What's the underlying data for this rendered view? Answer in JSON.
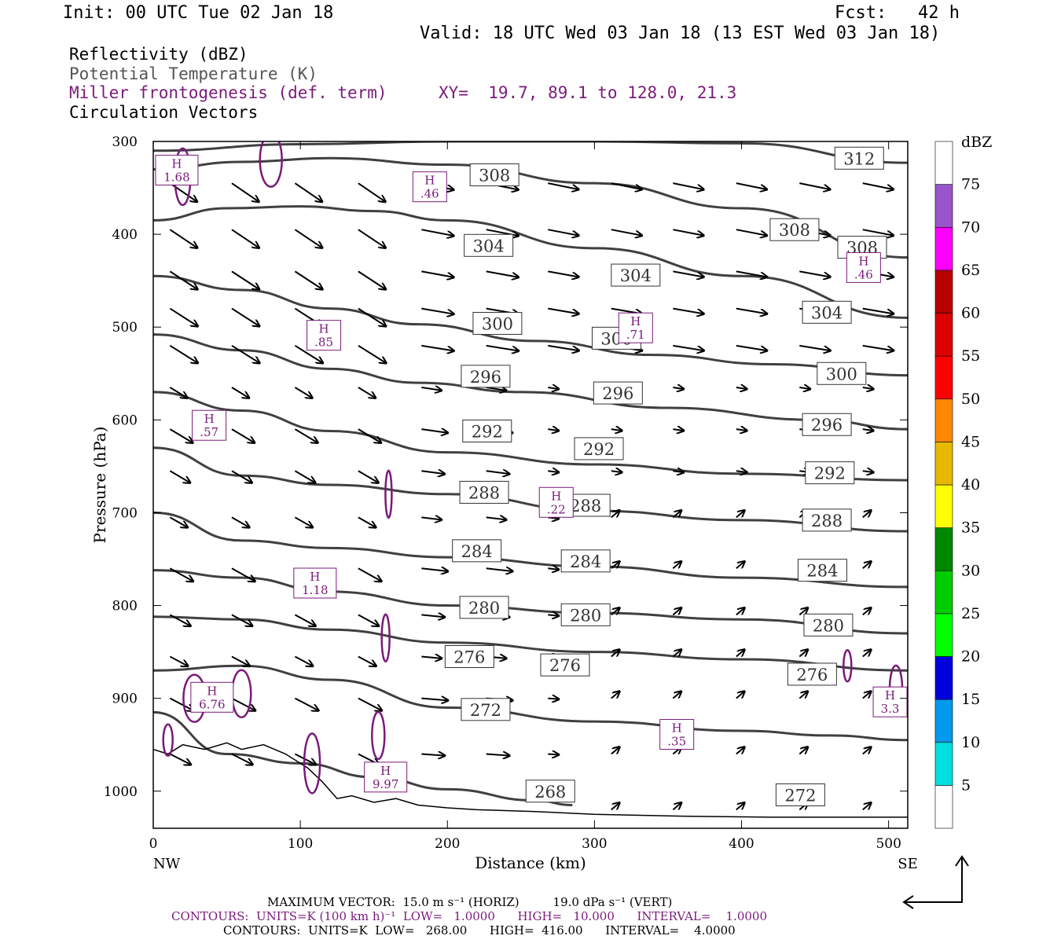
{
  "header": {
    "init": "Init: 00 UTC Tue 02 Jan 18",
    "fcst": "Fcst:   42 h",
    "valid": "Valid: 18 UTC Wed 03 Jan 18 (13 EST Wed 03 Jan 18)"
  },
  "legend": {
    "reflectivity": "Reflectivity (dBZ)",
    "theta": "Potential Temperature (K)",
    "frontogenesis": "Miller frontogenesis (def. term)",
    "xy": "XY=  19.7, 89.1 to 128.0, 21.3",
    "vectors": "Circulation Vectors"
  },
  "chart_data": {
    "type": "line",
    "title": "",
    "xlabel": "Distance (km)",
    "ylabel": "Pressure (hPa)",
    "xlim": [
      0,
      513
    ],
    "ylim": [
      1040,
      300
    ],
    "y_scale": "pressure (reversed)",
    "x_ticks": [
      "0",
      "100",
      "200",
      "300",
      "400",
      "500"
    ],
    "y_ticks": [
      "300",
      "400",
      "500",
      "600",
      "700",
      "800",
      "900",
      "1000"
    ],
    "x_end_labels": {
      "left": "NW",
      "right": "SE"
    },
    "theta_contours": [
      {
        "name": "312",
        "points": [
          [
            0,
            310
          ],
          [
            100,
            303
          ],
          [
            200,
            300
          ],
          [
            300,
            300
          ],
          [
            400,
            302
          ],
          [
            513,
            323
          ]
        ]
      },
      {
        "name": "308",
        "points": [
          [
            0,
            330
          ],
          [
            60,
            322
          ],
          [
            120,
            318
          ],
          [
            200,
            325
          ],
          [
            300,
            345
          ],
          [
            400,
            372
          ],
          [
            513,
            425
          ]
        ]
      },
      {
        "name": "304",
        "points": [
          [
            0,
            385
          ],
          [
            50,
            372
          ],
          [
            100,
            370
          ],
          [
            150,
            375
          ],
          [
            200,
            385
          ],
          [
            300,
            415
          ],
          [
            400,
            445
          ],
          [
            513,
            490
          ]
        ]
      },
      {
        "name": "300",
        "points": [
          [
            0,
            445
          ],
          [
            60,
            460
          ],
          [
            120,
            480
          ],
          [
            180,
            497
          ],
          [
            260,
            515
          ],
          [
            340,
            530
          ],
          [
            420,
            540
          ],
          [
            513,
            552
          ]
        ]
      },
      {
        "name": "296",
        "points": [
          [
            0,
            508
          ],
          [
            60,
            525
          ],
          [
            120,
            545
          ],
          [
            180,
            560
          ],
          [
            250,
            570
          ],
          [
            350,
            587
          ],
          [
            450,
            600
          ],
          [
            513,
            610
          ]
        ]
      },
      {
        "name": "292",
        "points": [
          [
            0,
            570
          ],
          [
            60,
            590
          ],
          [
            120,
            612
          ],
          [
            200,
            635
          ],
          [
            300,
            648
          ],
          [
            400,
            658
          ],
          [
            513,
            665
          ]
        ]
      },
      {
        "name": "288",
        "points": [
          [
            0,
            630
          ],
          [
            60,
            660
          ],
          [
            120,
            670
          ],
          [
            200,
            680
          ],
          [
            300,
            698
          ],
          [
            400,
            708
          ],
          [
            513,
            720
          ]
        ]
      },
      {
        "name": "284",
        "points": [
          [
            0,
            700
          ],
          [
            60,
            730
          ],
          [
            120,
            738
          ],
          [
            200,
            748
          ],
          [
            300,
            758
          ],
          [
            400,
            770
          ],
          [
            513,
            780
          ]
        ]
      },
      {
        "name": "280",
        "points": [
          [
            0,
            762
          ],
          [
            60,
            770
          ],
          [
            120,
            785
          ],
          [
            200,
            800
          ],
          [
            300,
            808
          ],
          [
            400,
            815
          ],
          [
            513,
            830
          ]
        ]
      },
      {
        "name": "276",
        "points": [
          [
            0,
            812
          ],
          [
            60,
            815
          ],
          [
            120,
            826
          ],
          [
            200,
            840
          ],
          [
            300,
            850
          ],
          [
            400,
            858
          ],
          [
            513,
            870
          ]
        ]
      },
      {
        "name": "272",
        "points": [
          [
            0,
            870
          ],
          [
            60,
            865
          ],
          [
            120,
            880
          ],
          [
            200,
            910
          ],
          [
            300,
            925
          ],
          [
            400,
            935
          ],
          [
            460,
            940
          ],
          [
            513,
            945
          ]
        ]
      },
      {
        "name": "268",
        "points": [
          [
            0,
            915
          ],
          [
            50,
            960
          ],
          [
            100,
            970
          ],
          [
            150,
            985
          ],
          [
            200,
            998
          ],
          [
            260,
            1010
          ],
          [
            285,
            1015
          ]
        ]
      }
    ],
    "theta_labels": [
      {
        "text": "312",
        "x": 480,
        "y": 318
      },
      {
        "text": "308",
        "x": 232,
        "y": 336
      },
      {
        "text": "308",
        "x": 436,
        "y": 395
      },
      {
        "text": "308",
        "x": 482,
        "y": 414
      },
      {
        "text": "304",
        "x": 228,
        "y": 412
      },
      {
        "text": "304",
        "x": 328,
        "y": 444
      },
      {
        "text": "304",
        "x": 458,
        "y": 484
      },
      {
        "text": "300",
        "x": 234,
        "y": 496
      },
      {
        "text": "300",
        "x": 315,
        "y": 512
      },
      {
        "text": "300",
        "x": 468,
        "y": 550
      },
      {
        "text": "296",
        "x": 226,
        "y": 553
      },
      {
        "text": "296",
        "x": 316,
        "y": 571
      },
      {
        "text": "296",
        "x": 458,
        "y": 605
      },
      {
        "text": "292",
        "x": 227,
        "y": 612
      },
      {
        "text": "292",
        "x": 303,
        "y": 631
      },
      {
        "text": "292",
        "x": 460,
        "y": 657
      },
      {
        "text": "288",
        "x": 225,
        "y": 678
      },
      {
        "text": "288",
        "x": 294,
        "y": 692
      },
      {
        "text": "288",
        "x": 458,
        "y": 708
      },
      {
        "text": "284",
        "x": 220,
        "y": 741
      },
      {
        "text": "284",
        "x": 294,
        "y": 752
      },
      {
        "text": "284",
        "x": 455,
        "y": 762
      },
      {
        "text": "280",
        "x": 225,
        "y": 802
      },
      {
        "text": "280",
        "x": 294,
        "y": 810
      },
      {
        "text": "280",
        "x": 459,
        "y": 821
      },
      {
        "text": "276",
        "x": 215,
        "y": 855
      },
      {
        "text": "276",
        "x": 280,
        "y": 864
      },
      {
        "text": "276",
        "x": 448,
        "y": 874
      },
      {
        "text": "272",
        "x": 226,
        "y": 912
      },
      {
        "text": "268",
        "x": 270,
        "y": 1000
      },
      {
        "text": "272",
        "x": 440,
        "y": 1004
      }
    ],
    "frontogenesis_maxima": [
      {
        "label": "H",
        "value": "1.68",
        "x": 16,
        "y": 330
      },
      {
        "label": "H",
        "value": ".46",
        "x": 188,
        "y": 348
      },
      {
        "label": "H",
        "value": ".46",
        "x": 483,
        "y": 435
      },
      {
        "label": "H",
        "value": ".85",
        "x": 116,
        "y": 508
      },
      {
        "label": "H",
        "value": ".71",
        "x": 328,
        "y": 500
      },
      {
        "label": "H",
        "value": ".57",
        "x": 38,
        "y": 605
      },
      {
        "label": "H",
        "value": ".22",
        "x": 274,
        "y": 688
      },
      {
        "label": "H",
        "value": "1.18",
        "x": 110,
        "y": 775
      },
      {
        "label": "H",
        "value": "6.76",
        "x": 40,
        "y": 898
      },
      {
        "label": "H",
        "value": ".35",
        "x": 356,
        "y": 938
      },
      {
        "label": "H",
        "value": "3.3",
        "x": 501,
        "y": 903
      },
      {
        "label": "H",
        "value": "9.97",
        "x": 158,
        "y": 984
      }
    ],
    "colorbar": {
      "title": "dBZ",
      "levels": [
        "5",
        "10",
        "15",
        "20",
        "25",
        "30",
        "35",
        "40",
        "45",
        "50",
        "55",
        "60",
        "65",
        "70",
        "75"
      ],
      "colors": [
        "#ffffff",
        "#00e0e0",
        "#0099ee",
        "#0000dd",
        "#00ff00",
        "#00cc00",
        "#008800",
        "#ffff00",
        "#e6b800",
        "#ff8800",
        "#ff0000",
        "#dd0000",
        "#b80000",
        "#ff00ff",
        "#9955cc",
        "#ffffff"
      ]
    },
    "colors": {
      "theta": "#404040",
      "frontogenesis": "#7a1a7a",
      "vectors": "#000000",
      "terrain": "#000000"
    }
  },
  "footer": {
    "max_vector": "MAXIMUM VECTOR:  15.0 m s⁻¹ (HORIZ)         19.0 dPa s⁻¹ (VERT)",
    "contours_fronto": "CONTOURS:  UNITS=K (100 km h)⁻¹  LOW=   1.0000      HIGH=   10.000      INTERVAL=    1.0000",
    "contours_theta": "CONTOURS:  UNITS=K  LOW=   268.00      HIGH=  416.00      INTERVAL=    4.0000"
  }
}
